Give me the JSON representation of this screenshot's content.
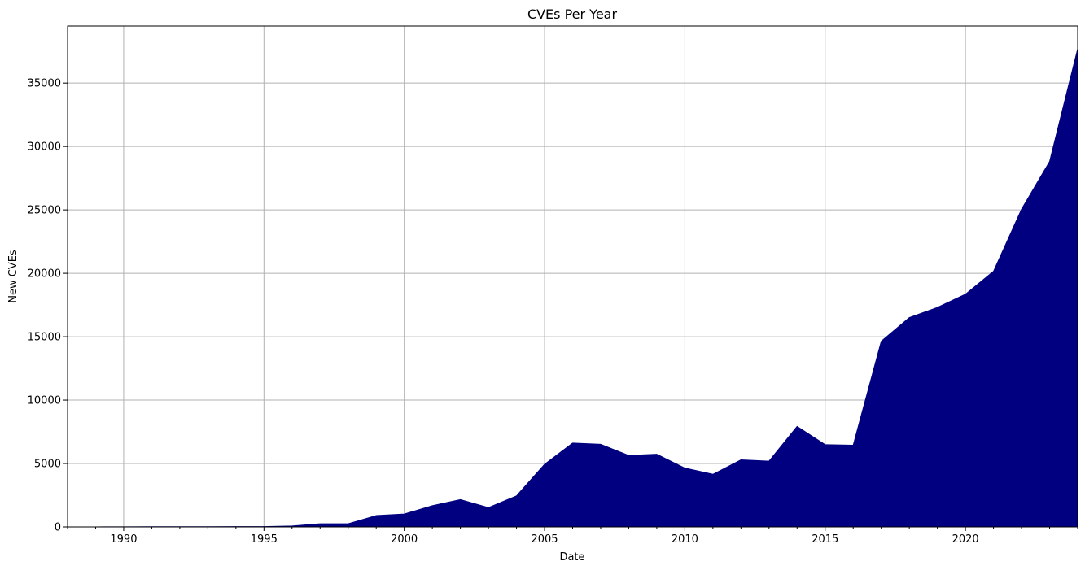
{
  "chart_data": {
    "type": "area",
    "title": "CVEs Per Year",
    "xlabel": "Date",
    "ylabel": "New CVEs",
    "xlim": [
      1988,
      2024
    ],
    "ylim": [
      0,
      39500
    ],
    "grid": true,
    "color": "#000080",
    "x_ticks": [
      1990,
      1995,
      2000,
      2005,
      2010,
      2015,
      2020
    ],
    "x_tick_labels": [
      "1990",
      "1995",
      "2000",
      "2005",
      "2010",
      "2015",
      "2020"
    ],
    "y_ticks": [
      0,
      5000,
      10000,
      15000,
      20000,
      25000,
      30000,
      35000
    ],
    "y_tick_labels": [
      "0",
      "5000",
      "10000",
      "15000",
      "20000",
      "25000",
      "30000",
      "35000"
    ],
    "series": [
      {
        "x": [
          1988,
          1989,
          1990,
          1991,
          1992,
          1993,
          1994,
          1995,
          1996,
          1997,
          1998,
          1999,
          2000,
          2001,
          2002,
          2003,
          2004,
          2005,
          2006,
          2007,
          2008,
          2009,
          2010,
          2011,
          2012,
          2013,
          2014,
          2015,
          2016,
          2017,
          2018,
          2019,
          2020,
          2021,
          2022,
          2023,
          2024
        ],
        "values": [
          2,
          3,
          11,
          15,
          13,
          13,
          25,
          25,
          75,
          252,
          246,
          894,
          1020,
          1677,
          2156,
          1527,
          2451,
          4935,
          6610,
          6520,
          5632,
          5732,
          4639,
          4150,
          5288,
          5187,
          7928,
          6487,
          6447,
          14645,
          16511,
          17305,
          18350,
          20155,
          25059,
          28818,
          37700
        ]
      }
    ]
  }
}
